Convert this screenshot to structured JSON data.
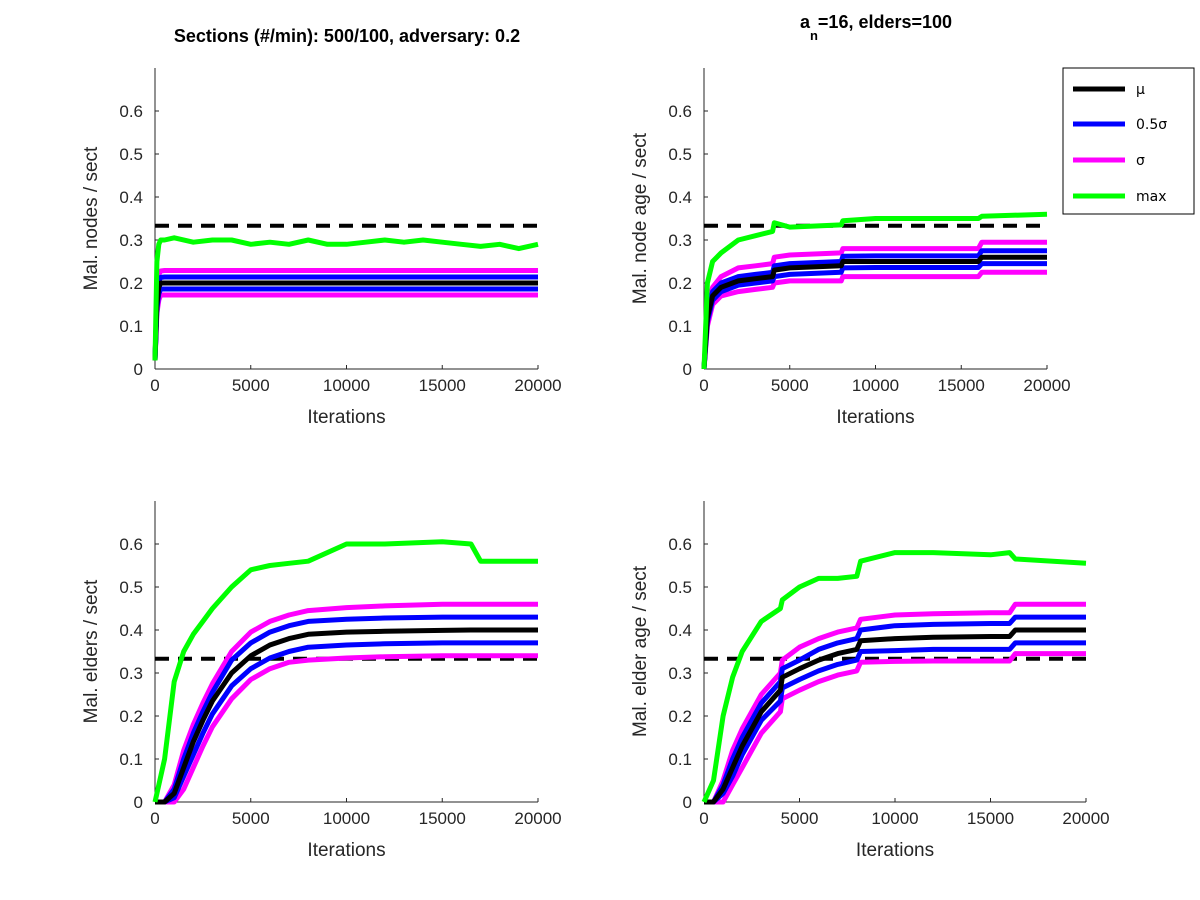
{
  "titles": {
    "left": "Sections (#/min): 500/100, adversary: 0.2",
    "right_base": "a",
    "right_sub": "n",
    "right_rest": "=16, elders=100"
  },
  "legend": {
    "items": [
      {
        "label": "μ",
        "color": "#000000"
      },
      {
        "label": "0.5σ",
        "color": "#0000ff"
      },
      {
        "label": "σ",
        "color": "#ff00ff"
      },
      {
        "label": "max",
        "color": "#00ff00"
      }
    ]
  },
  "colors": {
    "mean": "#000000",
    "half_sigma": "#0000ff",
    "sigma": "#ff00ff",
    "max": "#00ff00",
    "threshold": "#000000"
  },
  "chart_data": [
    {
      "type": "line",
      "position": "top-left",
      "xlabel": "Iterations",
      "ylabel": "Mal. nodes / sect",
      "xlim": [
        0,
        20000
      ],
      "ylim": [
        0,
        0.7
      ],
      "xticks": [
        0,
        5000,
        10000,
        15000,
        20000
      ],
      "yticks": [
        0,
        0.1,
        0.2,
        0.3,
        0.4,
        0.5,
        0.6
      ],
      "threshold": 0.333,
      "x": [
        0,
        100,
        200,
        300,
        500,
        1000,
        2000,
        3000,
        4000,
        5000,
        6000,
        7000,
        8000,
        9000,
        10000,
        11000,
        12000,
        13000,
        14000,
        15000,
        16000,
        17000,
        18000,
        19000,
        20000
      ],
      "series": [
        {
          "name": "μ",
          "role": "mean",
          "values": [
            0.02,
            0.15,
            0.19,
            0.2,
            0.2,
            0.2,
            0.2,
            0.2,
            0.2,
            0.2,
            0.2,
            0.2,
            0.2,
            0.2,
            0.2,
            0.2,
            0.2,
            0.2,
            0.2,
            0.2,
            0.2,
            0.2,
            0.2,
            0.2,
            0.2
          ]
        },
        {
          "name": "0.5σ",
          "role": "half_sigma",
          "values": [
            0.02,
            0.16,
            0.205,
            0.213,
            0.214,
            0.214,
            0.214,
            0.214,
            0.214,
            0.214,
            0.214,
            0.214,
            0.214,
            0.214,
            0.214,
            0.214,
            0.214,
            0.214,
            0.214,
            0.214,
            0.214,
            0.214,
            0.214,
            0.214,
            0.214
          ]
        },
        {
          "name": "0.5σ",
          "role": "half_sigma",
          "values": [
            0.02,
            0.14,
            0.175,
            0.186,
            0.186,
            0.186,
            0.186,
            0.186,
            0.186,
            0.186,
            0.186,
            0.186,
            0.186,
            0.186,
            0.186,
            0.186,
            0.186,
            0.186,
            0.186,
            0.186,
            0.186,
            0.186,
            0.186,
            0.186,
            0.186
          ]
        },
        {
          "name": "σ",
          "role": "sigma",
          "values": [
            0.02,
            0.17,
            0.22,
            0.228,
            0.229,
            0.229,
            0.229,
            0.229,
            0.229,
            0.229,
            0.229,
            0.229,
            0.229,
            0.229,
            0.229,
            0.229,
            0.229,
            0.229,
            0.229,
            0.229,
            0.229,
            0.229,
            0.229,
            0.229,
            0.229
          ]
        },
        {
          "name": "σ",
          "role": "sigma",
          "values": [
            0.02,
            0.13,
            0.16,
            0.172,
            0.172,
            0.172,
            0.172,
            0.172,
            0.172,
            0.172,
            0.172,
            0.172,
            0.172,
            0.172,
            0.172,
            0.172,
            0.172,
            0.172,
            0.172,
            0.172,
            0.172,
            0.172,
            0.172,
            0.172,
            0.172
          ]
        },
        {
          "name": "max",
          "role": "max",
          "values": [
            0.02,
            0.25,
            0.29,
            0.3,
            0.3,
            0.305,
            0.295,
            0.3,
            0.3,
            0.29,
            0.295,
            0.29,
            0.3,
            0.29,
            0.29,
            0.295,
            0.3,
            0.295,
            0.3,
            0.295,
            0.29,
            0.285,
            0.29,
            0.28,
            0.29
          ]
        }
      ]
    },
    {
      "type": "line",
      "position": "top-right",
      "xlabel": "Iterations",
      "ylabel": "Mal. node age / sect",
      "xlim": [
        0,
        20000
      ],
      "ylim": [
        0,
        0.7
      ],
      "xticks": [
        0,
        5000,
        10000,
        15000,
        20000
      ],
      "yticks": [
        0,
        0.1,
        0.2,
        0.3,
        0.4,
        0.5,
        0.6
      ],
      "threshold": 0.333,
      "x": [
        0,
        200,
        500,
        1000,
        2000,
        3000,
        4000,
        4100,
        5000,
        8000,
        8100,
        10000,
        16000,
        16200,
        20000
      ],
      "series": [
        {
          "name": "μ",
          "role": "mean",
          "values": [
            0.0,
            0.12,
            0.17,
            0.19,
            0.205,
            0.21,
            0.215,
            0.23,
            0.235,
            0.24,
            0.25,
            0.25,
            0.25,
            0.26,
            0.26
          ]
        },
        {
          "name": "0.5σ",
          "role": "half_sigma",
          "values": [
            0.0,
            0.13,
            0.18,
            0.2,
            0.215,
            0.22,
            0.225,
            0.24,
            0.245,
            0.25,
            0.262,
            0.263,
            0.263,
            0.275,
            0.275
          ]
        },
        {
          "name": "0.5σ",
          "role": "half_sigma",
          "values": [
            0.0,
            0.11,
            0.16,
            0.18,
            0.195,
            0.2,
            0.205,
            0.215,
            0.22,
            0.225,
            0.235,
            0.236,
            0.236,
            0.245,
            0.245
          ]
        },
        {
          "name": "σ",
          "role": "sigma",
          "values": [
            0.0,
            0.14,
            0.19,
            0.215,
            0.235,
            0.24,
            0.245,
            0.26,
            0.265,
            0.27,
            0.28,
            0.28,
            0.28,
            0.295,
            0.295
          ]
        },
        {
          "name": "σ",
          "role": "sigma",
          "values": [
            0.0,
            0.1,
            0.15,
            0.17,
            0.18,
            0.185,
            0.19,
            0.2,
            0.205,
            0.205,
            0.215,
            0.215,
            0.215,
            0.225,
            0.225
          ]
        },
        {
          "name": "max",
          "role": "max",
          "values": [
            0.0,
            0.2,
            0.25,
            0.27,
            0.3,
            0.31,
            0.32,
            0.34,
            0.33,
            0.335,
            0.345,
            0.35,
            0.35,
            0.355,
            0.36
          ]
        }
      ]
    },
    {
      "type": "line",
      "position": "bottom-left",
      "xlabel": "Iterations",
      "ylabel": "Mal. elders / sect",
      "xlim": [
        0,
        20000
      ],
      "ylim": [
        0,
        0.7
      ],
      "xticks": [
        0,
        5000,
        10000,
        15000,
        20000
      ],
      "yticks": [
        0,
        0.1,
        0.2,
        0.3,
        0.4,
        0.5,
        0.6
      ],
      "threshold": 0.333,
      "x": [
        0,
        500,
        1000,
        1500,
        2000,
        2500,
        3000,
        4000,
        5000,
        6000,
        7000,
        8000,
        10000,
        12000,
        15000,
        16500,
        17000,
        20000
      ],
      "series": [
        {
          "name": "μ",
          "role": "mean",
          "values": [
            0.0,
            0.0,
            0.02,
            0.08,
            0.14,
            0.19,
            0.235,
            0.3,
            0.34,
            0.365,
            0.38,
            0.39,
            0.395,
            0.397,
            0.399,
            0.4,
            0.4,
            0.4
          ]
        },
        {
          "name": "0.5σ",
          "role": "half_sigma",
          "values": [
            0.0,
            0.0,
            0.03,
            0.1,
            0.16,
            0.21,
            0.255,
            0.33,
            0.37,
            0.395,
            0.41,
            0.42,
            0.425,
            0.428,
            0.43,
            0.43,
            0.43,
            0.43
          ]
        },
        {
          "name": "0.5σ",
          "role": "half_sigma",
          "values": [
            0.0,
            0.0,
            0.01,
            0.06,
            0.11,
            0.16,
            0.205,
            0.27,
            0.31,
            0.335,
            0.35,
            0.36,
            0.365,
            0.368,
            0.37,
            0.37,
            0.37,
            0.37
          ]
        },
        {
          "name": "σ",
          "role": "sigma",
          "values": [
            0.0,
            0.0,
            0.04,
            0.12,
            0.18,
            0.23,
            0.275,
            0.35,
            0.395,
            0.42,
            0.435,
            0.445,
            0.452,
            0.456,
            0.46,
            0.46,
            0.46,
            0.46
          ]
        },
        {
          "name": "σ",
          "role": "sigma",
          "values": [
            0.0,
            0.0,
            0.0,
            0.03,
            0.08,
            0.13,
            0.175,
            0.24,
            0.285,
            0.31,
            0.325,
            0.33,
            0.335,
            0.338,
            0.34,
            0.34,
            0.34,
            0.34
          ]
        },
        {
          "name": "max",
          "role": "max",
          "values": [
            0.0,
            0.1,
            0.28,
            0.35,
            0.39,
            0.42,
            0.45,
            0.5,
            0.54,
            0.55,
            0.555,
            0.56,
            0.6,
            0.6,
            0.605,
            0.6,
            0.56,
            0.56
          ]
        }
      ]
    },
    {
      "type": "line",
      "position": "bottom-right",
      "xlabel": "Iterations",
      "ylabel": "Mal. elder age / sect",
      "xlim": [
        0,
        20000
      ],
      "ylim": [
        0,
        0.7
      ],
      "xticks": [
        0,
        5000,
        10000,
        15000,
        20000
      ],
      "yticks": [
        0,
        0.1,
        0.2,
        0.3,
        0.4,
        0.5,
        0.6
      ],
      "threshold": 0.333,
      "x": [
        0,
        500,
        1000,
        1500,
        2000,
        3000,
        4000,
        4100,
        5000,
        6000,
        7000,
        8000,
        8200,
        10000,
        12000,
        15000,
        16000,
        16300,
        20000
      ],
      "series": [
        {
          "name": "μ",
          "role": "mean",
          "values": [
            0.0,
            0.0,
            0.03,
            0.08,
            0.13,
            0.21,
            0.26,
            0.29,
            0.31,
            0.33,
            0.345,
            0.355,
            0.375,
            0.38,
            0.383,
            0.385,
            0.385,
            0.4,
            0.4
          ]
        },
        {
          "name": "0.5σ",
          "role": "half_sigma",
          "values": [
            0.0,
            0.0,
            0.04,
            0.1,
            0.15,
            0.23,
            0.28,
            0.31,
            0.33,
            0.355,
            0.37,
            0.38,
            0.4,
            0.41,
            0.413,
            0.415,
            0.415,
            0.43,
            0.43
          ]
        },
        {
          "name": "0.5σ",
          "role": "half_sigma",
          "values": [
            0.0,
            0.0,
            0.02,
            0.06,
            0.11,
            0.19,
            0.235,
            0.265,
            0.285,
            0.305,
            0.32,
            0.33,
            0.35,
            0.352,
            0.355,
            0.355,
            0.355,
            0.37,
            0.37
          ]
        },
        {
          "name": "σ",
          "role": "sigma",
          "values": [
            0.0,
            0.0,
            0.05,
            0.12,
            0.17,
            0.25,
            0.3,
            0.33,
            0.36,
            0.38,
            0.395,
            0.405,
            0.425,
            0.435,
            0.438,
            0.44,
            0.44,
            0.46,
            0.46
          ]
        },
        {
          "name": "σ",
          "role": "sigma",
          "values": [
            0.0,
            0.0,
            0.0,
            0.04,
            0.08,
            0.16,
            0.21,
            0.24,
            0.26,
            0.28,
            0.295,
            0.305,
            0.325,
            0.327,
            0.328,
            0.328,
            0.328,
            0.345,
            0.345
          ]
        },
        {
          "name": "max",
          "role": "max",
          "values": [
            0.0,
            0.05,
            0.2,
            0.29,
            0.35,
            0.42,
            0.45,
            0.47,
            0.5,
            0.52,
            0.52,
            0.525,
            0.56,
            0.58,
            0.58,
            0.575,
            0.58,
            0.565,
            0.555
          ]
        }
      ]
    }
  ]
}
